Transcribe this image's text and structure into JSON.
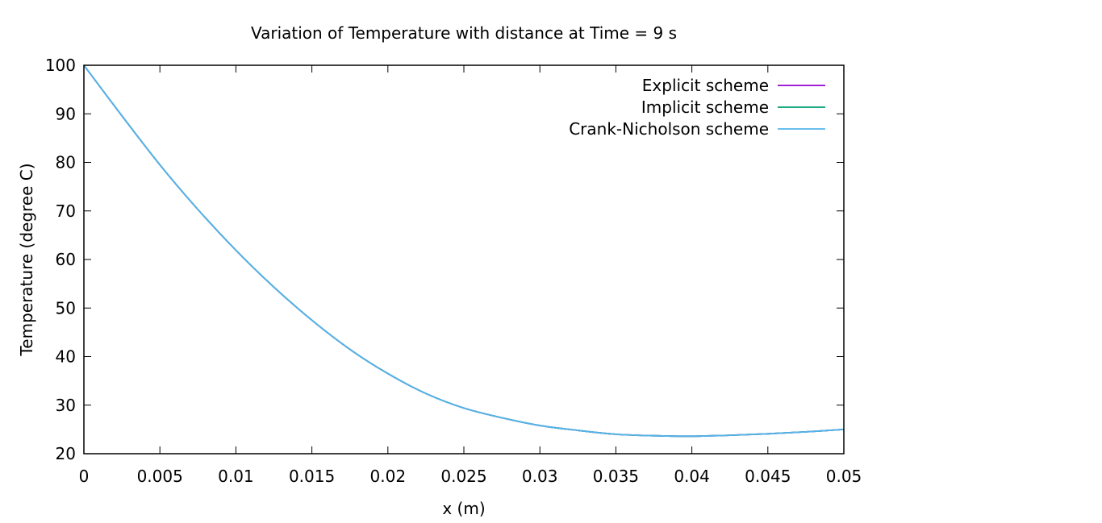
{
  "chart_data": {
    "type": "line",
    "title": "Variation of Temperature with distance at Time = 9 s",
    "xlabel": "x (m)",
    "ylabel": "Temperature (degree C)",
    "xlim": [
      0,
      0.05
    ],
    "ylim": [
      20,
      100
    ],
    "x_ticks": [
      "0",
      "0.005",
      "0.01",
      "0.015",
      "0.02",
      "0.025",
      "0.03",
      "0.035",
      "0.04",
      "0.045",
      "0.05"
    ],
    "y_ticks": [
      "20",
      "30",
      "40",
      "50",
      "60",
      "70",
      "80",
      "90",
      "100"
    ],
    "grid": false,
    "legend_position": "top-right",
    "x": [
      0,
      0.0025,
      0.005,
      0.0075,
      0.01,
      0.0125,
      0.015,
      0.0175,
      0.02,
      0.0225,
      0.025,
      0.0275,
      0.03,
      0.0325,
      0.035,
      0.0375,
      0.04,
      0.0425,
      0.045,
      0.0475,
      0.05
    ],
    "series": [
      {
        "name": "Explicit scheme",
        "color": "#9400d3",
        "values": [
          100,
          89.6,
          79.5,
          70.3,
          61.9,
          54.3,
          47.5,
          41.5,
          36.5,
          32.4,
          29.4,
          27.4,
          25.8,
          24.8,
          24.0,
          23.7,
          23.6,
          23.8,
          24.1,
          24.5,
          25.0
        ]
      },
      {
        "name": "Implicit scheme",
        "color": "#009e73",
        "values": [
          100,
          89.6,
          79.5,
          70.3,
          61.9,
          54.3,
          47.5,
          41.5,
          36.5,
          32.4,
          29.4,
          27.4,
          25.8,
          24.8,
          24.0,
          23.7,
          23.6,
          23.8,
          24.1,
          24.5,
          25.0
        ]
      },
      {
        "name": "Crank-Nicholson scheme",
        "color": "#56b4e9",
        "values": [
          100,
          89.6,
          79.5,
          70.3,
          61.9,
          54.3,
          47.5,
          41.5,
          36.5,
          32.4,
          29.4,
          27.4,
          25.8,
          24.8,
          24.0,
          23.7,
          23.6,
          23.8,
          24.1,
          24.5,
          25.0
        ]
      }
    ]
  }
}
